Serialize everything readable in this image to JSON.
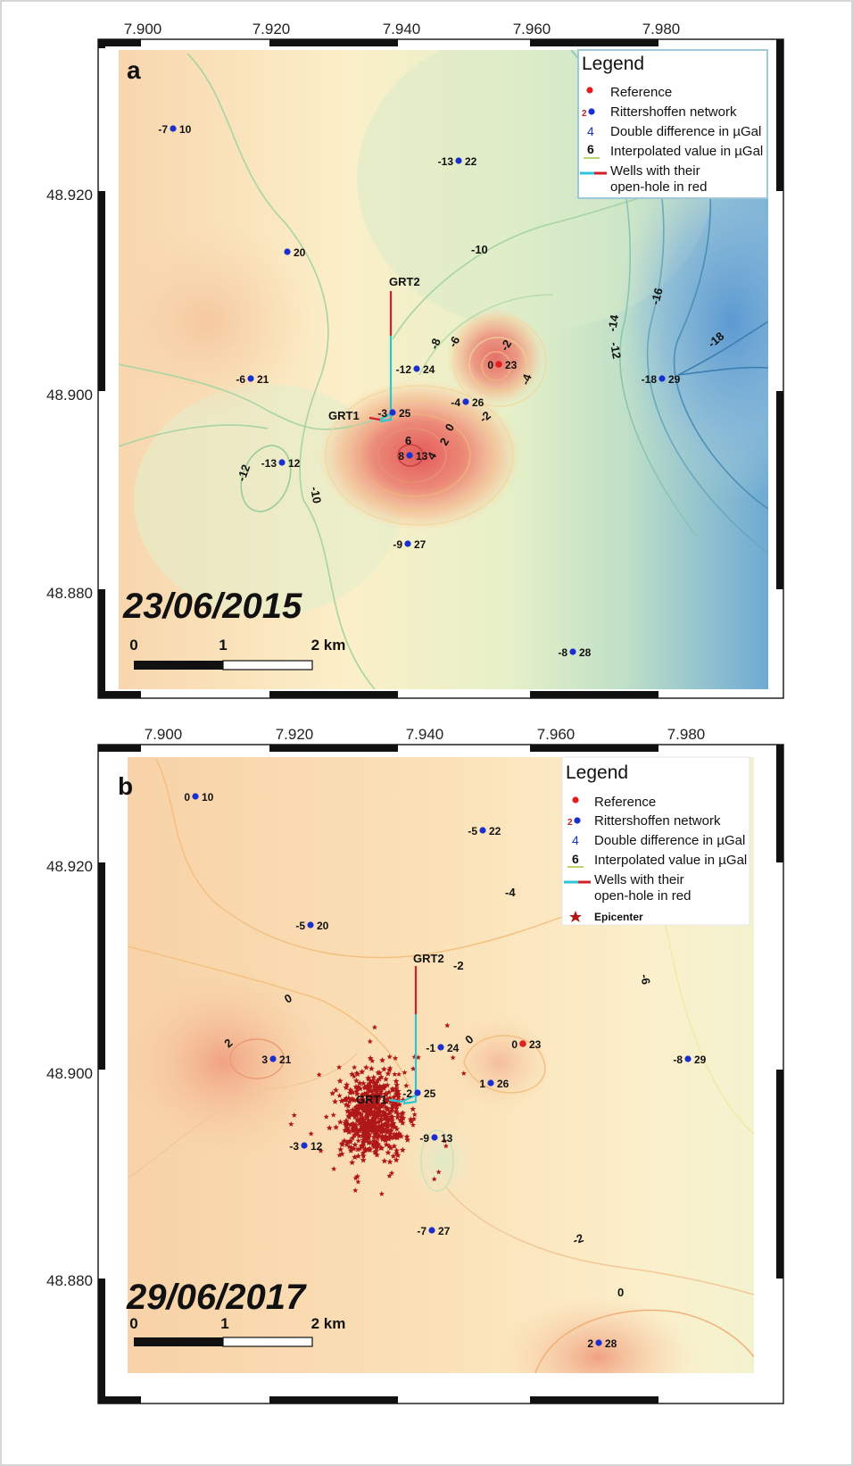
{
  "map_panels": [
    {
      "id": "a",
      "panel_label": "a",
      "date": "23/06/2015",
      "x_ticks": [
        "7.900",
        "7.920",
        "7.940",
        "7.960",
        "7.980"
      ],
      "y_ticks": [
        "48.920",
        "48.900",
        "48.880"
      ],
      "scale_bar": {
        "labels": [
          "0",
          "1",
          "2 km"
        ]
      },
      "legend": {
        "title": "Legend",
        "items": [
          {
            "symbol": "",
            "text": "Reference"
          },
          {
            "symbol": "2",
            "text": "Rittershoffen network"
          },
          {
            "symbol": "4",
            "text": "Double difference in µGal"
          },
          {
            "symbol": "6",
            "text": "Interpolated value in µGal"
          },
          {
            "symbol": "",
            "text": "Wells with their",
            "text2": "open-hole in red"
          }
        ]
      },
      "wells": [
        "GRT2",
        "GRT1"
      ],
      "stations": [
        {
          "dd": "-7",
          "id": "10"
        },
        {
          "dd": "-13",
          "id": "22"
        },
        {
          "dd": "",
          "id": "20"
        },
        {
          "dd": "-12",
          "id": "24"
        },
        {
          "dd": "0",
          "id": "23"
        },
        {
          "dd": "-6",
          "id": "21"
        },
        {
          "dd": "-18",
          "id": "29"
        },
        {
          "dd": "-4",
          "id": "26"
        },
        {
          "dd": "-3",
          "id": "25"
        },
        {
          "dd": "8",
          "id": "13"
        },
        {
          "dd": "-13",
          "id": "12"
        },
        {
          "dd": "-9",
          "id": "27"
        },
        {
          "dd": "-8",
          "id": "28"
        }
      ],
      "contour_labels": [
        "-10",
        "-8",
        "-6",
        "-2",
        "-4",
        "-2",
        "0",
        "2",
        "4",
        "6",
        "-12",
        "-10",
        "-14",
        "-12",
        "-16",
        "-18"
      ]
    },
    {
      "id": "b",
      "panel_label": "b",
      "date": "29/06/2017",
      "x_ticks": [
        "7.900",
        "7.920",
        "7.940",
        "7.960",
        "7.980"
      ],
      "y_ticks": [
        "48.920",
        "48.900",
        "48.880"
      ],
      "scale_bar": {
        "labels": [
          "0",
          "1",
          "2 km"
        ]
      },
      "legend": {
        "title": "Legend",
        "items": [
          {
            "symbol": "",
            "text": "Reference"
          },
          {
            "symbol": "2",
            "text": "Rittershoffen network"
          },
          {
            "symbol": "4",
            "text": "Double difference in µGal"
          },
          {
            "symbol": "6",
            "text": "Interpolated value in µGal"
          },
          {
            "symbol": "",
            "text": "Wells with their",
            "text2": "open-hole in red"
          },
          {
            "symbol": "",
            "text": "Epicenter"
          }
        ]
      },
      "wells": [
        "GRT2",
        "GRT1"
      ],
      "stations": [
        {
          "dd": "0",
          "id": "10"
        },
        {
          "dd": "-5",
          "id": "22"
        },
        {
          "dd": "-5",
          "id": "20"
        },
        {
          "dd": "-1",
          "id": "24"
        },
        {
          "dd": "0",
          "id": "23"
        },
        {
          "dd": "3",
          "id": "21"
        },
        {
          "dd": "-8",
          "id": "29"
        },
        {
          "dd": "1",
          "id": "26"
        },
        {
          "dd": "-2",
          "id": "25"
        },
        {
          "dd": "-9",
          "id": "13"
        },
        {
          "dd": "-3",
          "id": "12"
        },
        {
          "dd": "-7",
          "id": "27"
        },
        {
          "dd": "2",
          "id": "28"
        }
      ],
      "contour_labels": [
        "-4",
        "-2",
        "-6",
        "0",
        "2",
        "0",
        "-2",
        "0"
      ]
    }
  ],
  "colors": {
    "reference": "#e02020",
    "station": "#1a2fd0",
    "station_id": "#c0202a",
    "double_difference": "#1a2fd0",
    "well_casing": "#2cc6d6",
    "well_openhole": "#d0202a",
    "epicenter": "#b01818"
  }
}
